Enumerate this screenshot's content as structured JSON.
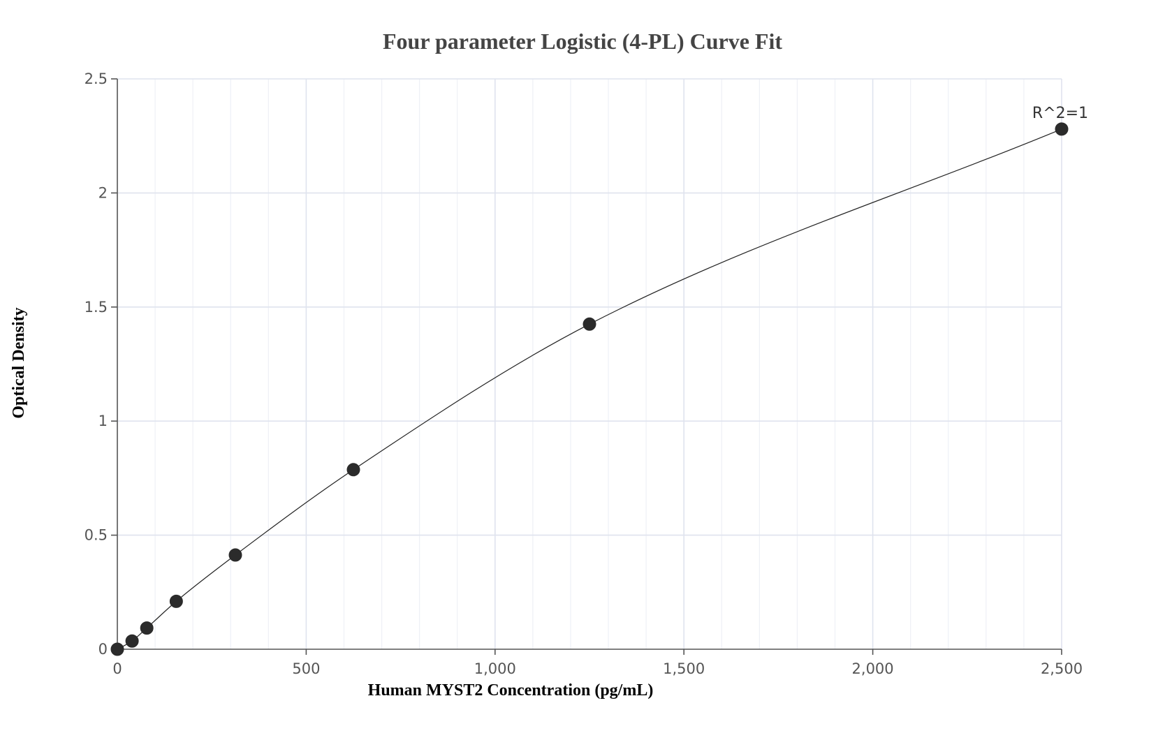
{
  "chart_data": {
    "type": "scatter",
    "title": "Four parameter Logistic (4-PL) Curve Fit",
    "xlabel": "Human MYST2 Concentration (pg/mL)",
    "ylabel": "Optical Density",
    "xlim": [
      0,
      2500
    ],
    "ylim": [
      0,
      2.5
    ],
    "x_ticks": [
      0,
      500,
      1000,
      1500,
      2000,
      2500
    ],
    "x_tick_labels": [
      "0",
      "500",
      "1,000",
      "1,500",
      "2,000",
      "2,500"
    ],
    "y_ticks": [
      0,
      0.5,
      1,
      1.5,
      2,
      2.5
    ],
    "y_tick_labels": [
      "0",
      "0.5",
      "1",
      "1.5",
      "2",
      "2.5"
    ],
    "grid": true,
    "points": [
      {
        "x": 0,
        "y": 0.0
      },
      {
        "x": 39,
        "y": 0.036
      },
      {
        "x": 78,
        "y": 0.093
      },
      {
        "x": 156,
        "y": 0.21
      },
      {
        "x": 312.5,
        "y": 0.413
      },
      {
        "x": 625,
        "y": 0.787
      },
      {
        "x": 1250,
        "y": 1.425
      },
      {
        "x": 2500,
        "y": 2.28
      }
    ],
    "annotation": "R^2=1",
    "fit": "4-PL"
  },
  "colors": {
    "marker": "#2b2b2b",
    "curve": "#222222",
    "grid_major": "#dfe3ee",
    "grid_minor": "#eef0f6",
    "title": "#444444"
  }
}
